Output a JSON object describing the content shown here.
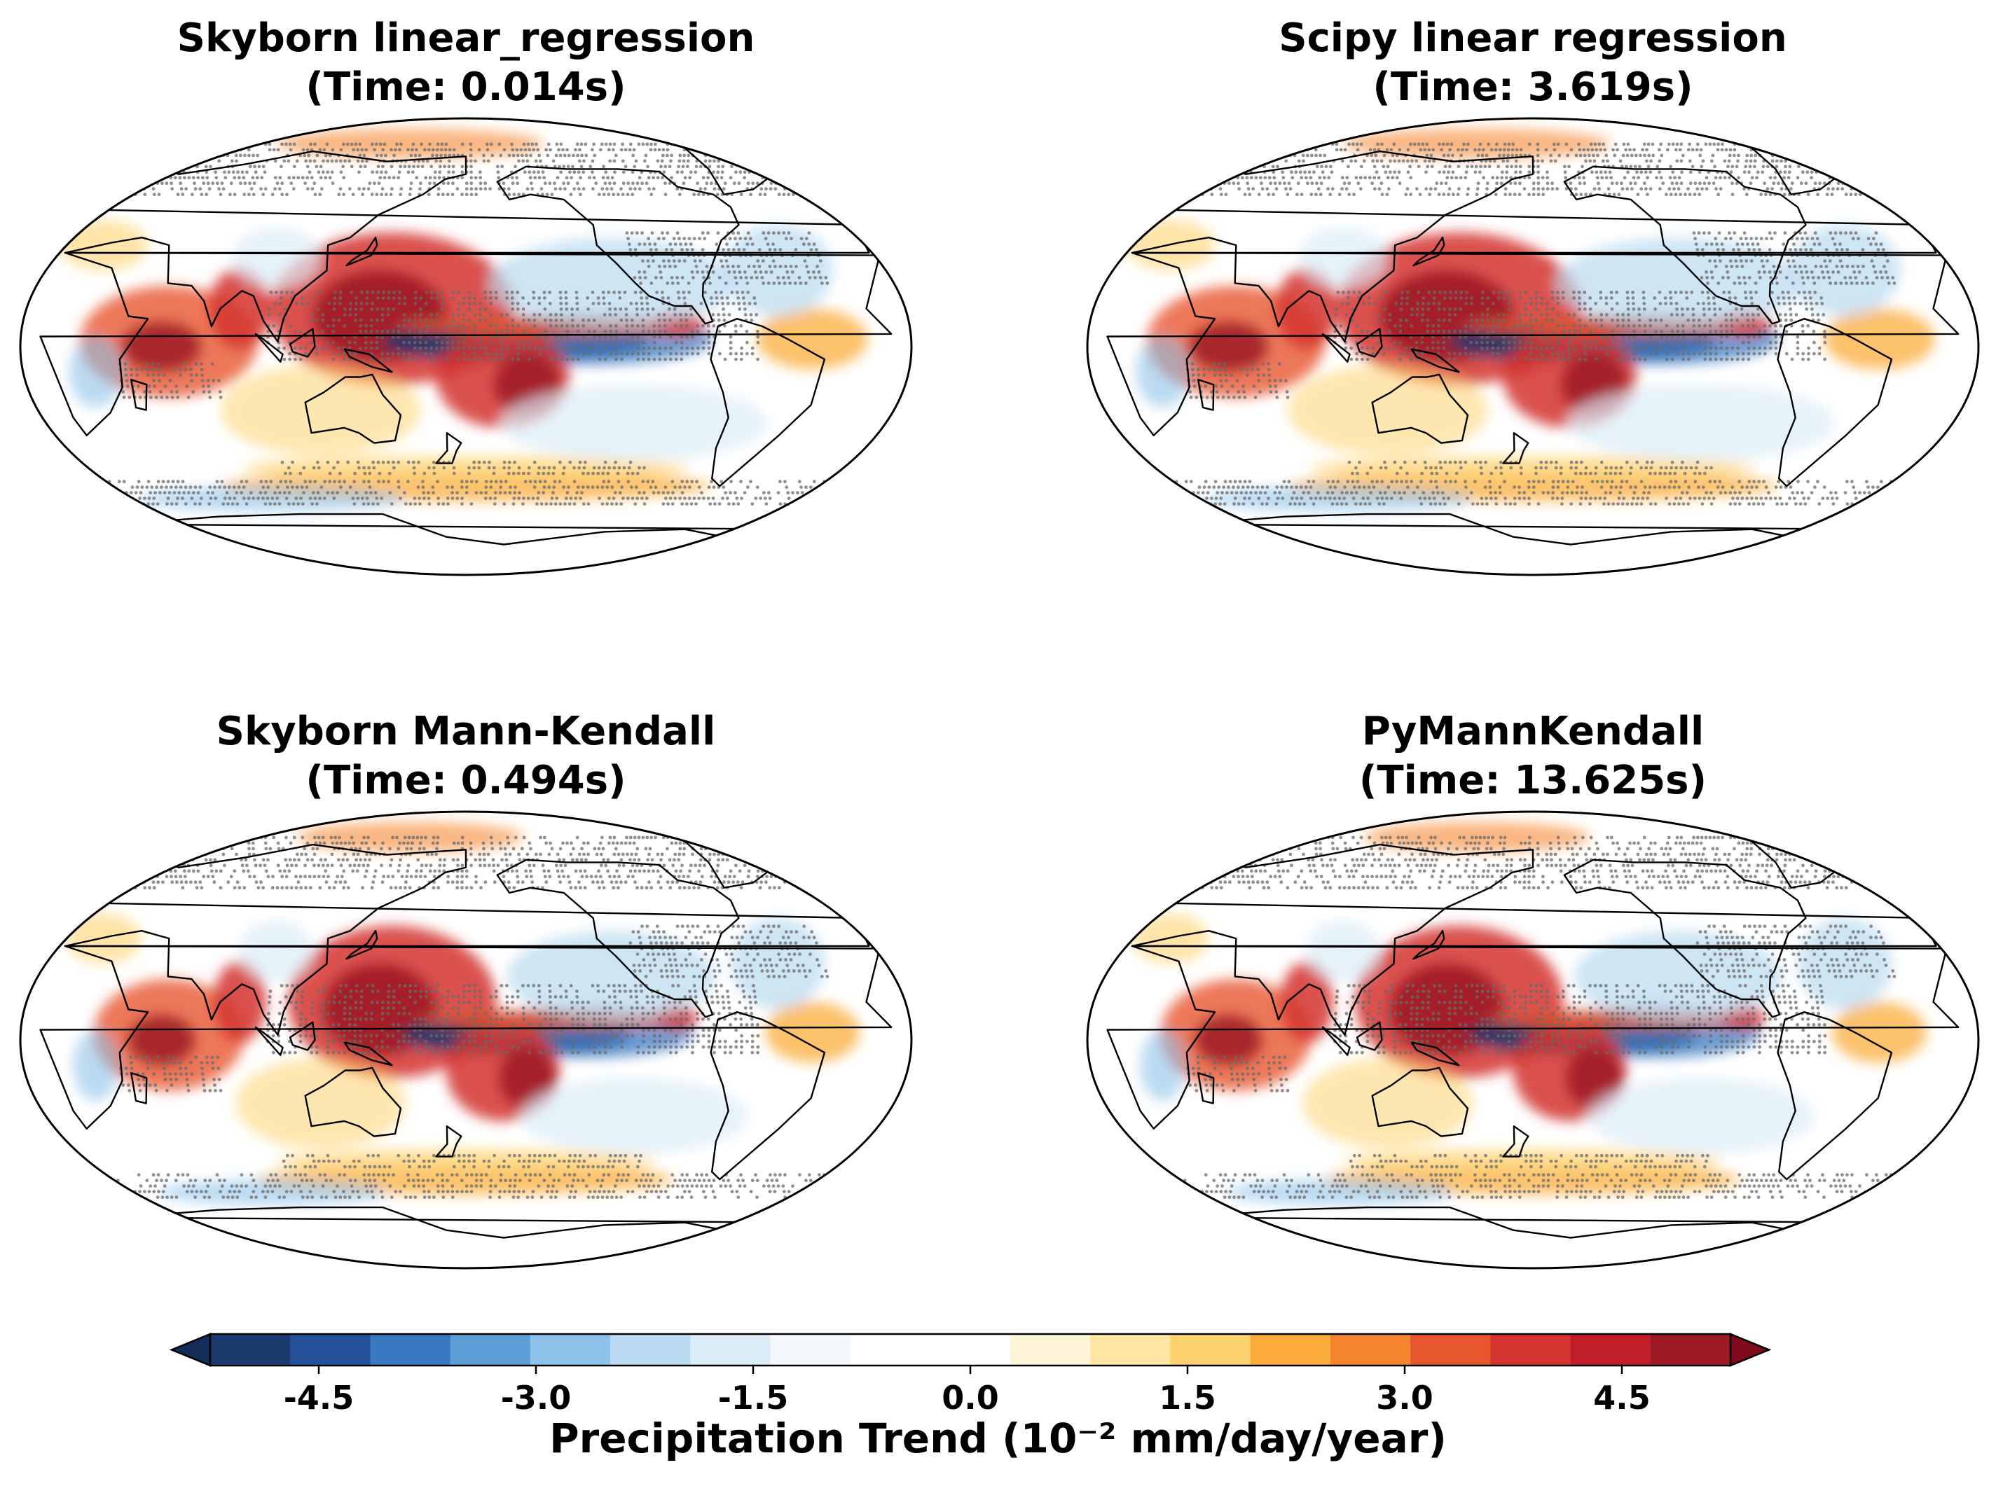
{
  "panels": [
    {
      "title": "Skyborn linear_regression",
      "time": "(Time: 0.014s)"
    },
    {
      "title": "Scipy linear regression",
      "time": "(Time: 3.619s)"
    },
    {
      "title": "Skyborn Mann-Kendall",
      "time": "(Time: 0.494s)"
    },
    {
      "title": "PyMannKendall",
      "time": "(Time: 13.625s)"
    }
  ],
  "colorbar": {
    "label": "Precipitation Trend (10⁻² mm/day/year)",
    "ticks": [
      "-4.5",
      "-3.0",
      "-1.5",
      "0.0",
      "1.5",
      "3.0",
      "4.5"
    ],
    "tick_values": [
      -4.5,
      -3.0,
      -1.5,
      0.0,
      1.5,
      3.0,
      4.5
    ],
    "range": [
      -5.25,
      5.25
    ],
    "extend": "both",
    "colors": [
      "#1b3a6e",
      "#25529a",
      "#3a78c2",
      "#5c9fd6",
      "#8dc3e9",
      "#b9daf0",
      "#dcecf7",
      "#f2f8fc",
      "#ffffff",
      "#ffffff",
      "#fff5d8",
      "#ffe7a3",
      "#fed26e",
      "#fbac3a",
      "#f5852e",
      "#e8562e",
      "#d33430",
      "#c01f2a",
      "#9e1a25"
    ],
    "extend_low_color": "#132c58",
    "extend_high_color": "#7f0a1c"
  }
}
